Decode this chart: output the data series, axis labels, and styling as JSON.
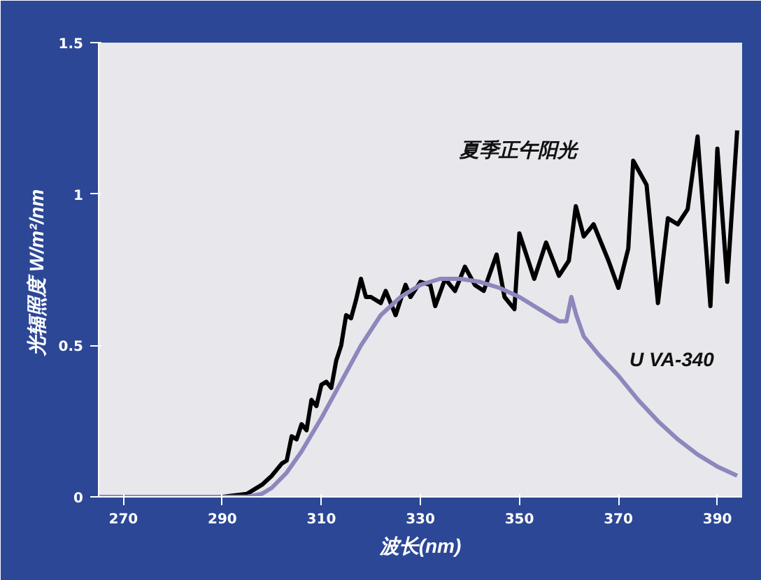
{
  "chart_data": {
    "type": "line",
    "xlabel": "波长(nm)",
    "ylabel": "光辐照度  W/m²/nm",
    "xlim": [
      265,
      395
    ],
    "xticks": [
      270,
      290,
      310,
      330,
      350,
      370,
      390
    ],
    "ylim": [
      0,
      1.5
    ],
    "yticks": [
      0,
      0.5,
      1,
      1.5
    ],
    "grid": false,
    "marker": "none",
    "line_style": "solid",
    "series": [
      {
        "name": "夏季正午阳光",
        "color": "#000000",
        "x": [
          265,
          290,
          295,
          298,
          300,
          302,
          303,
          304,
          305,
          306,
          307,
          308,
          309,
          310,
          311,
          312,
          313,
          314,
          315,
          316,
          317,
          318,
          319,
          320,
          322,
          323,
          325,
          327,
          328,
          330,
          332,
          333,
          335,
          337,
          339,
          341,
          342.8,
          345.4,
          347,
          349,
          350,
          353,
          355.4,
          358,
          360,
          361.4,
          363,
          365,
          368,
          370,
          372,
          373,
          375.7,
          378,
          380,
          382,
          384,
          386,
          388.6,
          390,
          392,
          394
        ],
        "values": [
          0,
          0,
          0.01,
          0.04,
          0.07,
          0.11,
          0.12,
          0.2,
          0.19,
          0.24,
          0.22,
          0.32,
          0.3,
          0.37,
          0.38,
          0.36,
          0.45,
          0.5,
          0.6,
          0.59,
          0.65,
          0.72,
          0.66,
          0.66,
          0.64,
          0.68,
          0.6,
          0.7,
          0.66,
          0.71,
          0.7,
          0.63,
          0.72,
          0.68,
          0.76,
          0.7,
          0.68,
          0.8,
          0.66,
          0.62,
          0.87,
          0.72,
          0.84,
          0.73,
          0.78,
          0.96,
          0.86,
          0.9,
          0.78,
          0.69,
          0.82,
          1.11,
          1.03,
          0.64,
          0.92,
          0.9,
          0.95,
          1.19,
          0.63,
          1.15,
          0.71,
          1.21
        ]
      },
      {
        "name": "U VA-340",
        "color": "#8c88bc",
        "x": [
          265,
          295,
          298,
          300,
          303,
          306,
          310,
          314,
          318,
          322,
          326,
          330,
          334,
          338,
          342,
          346,
          350,
          354,
          358,
          359.5,
          360.5,
          361.5,
          363,
          366,
          370,
          374,
          378,
          382,
          386,
          390,
          394
        ],
        "values": [
          0,
          0,
          0.01,
          0.03,
          0.08,
          0.15,
          0.26,
          0.38,
          0.5,
          0.6,
          0.66,
          0.7,
          0.72,
          0.72,
          0.71,
          0.69,
          0.66,
          0.62,
          0.58,
          0.58,
          0.66,
          0.6,
          0.53,
          0.47,
          0.4,
          0.32,
          0.25,
          0.19,
          0.14,
          0.1,
          0.07
        ]
      }
    ]
  }
}
